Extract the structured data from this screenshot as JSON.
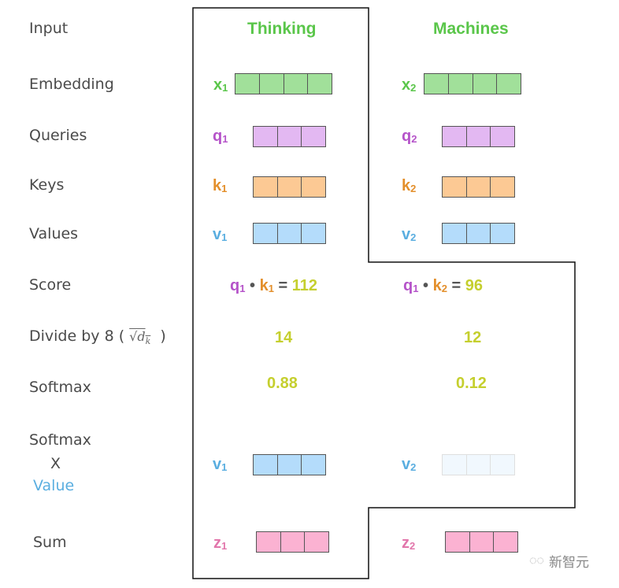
{
  "row_labels": {
    "input": "Input",
    "embedding": "Embedding",
    "queries": "Queries",
    "keys": "Keys",
    "values": "Values",
    "score": "Score",
    "divide": "Divide by 8 (",
    "divide_close": ")",
    "sqrt_dk": "√d",
    "sqrt_sub": "k",
    "softmax": "Softmax",
    "sm_value_1": "Softmax",
    "sm_value_2": "X",
    "sm_value_3": "Value",
    "sum": "Sum"
  },
  "words": [
    "Thinking",
    "Machines"
  ],
  "vars": {
    "x": "x",
    "q": "q",
    "k": "k",
    "v": "v",
    "z": "z",
    "i1": "1",
    "i2": "2"
  },
  "score": {
    "dot": "•",
    "eq": "=",
    "s1": "112",
    "s2": "96"
  },
  "divided": [
    "14",
    "12"
  ],
  "softmax": [
    "0.88",
    "0.12"
  ],
  "watermark": "新智元",
  "colors": {
    "green": "#5ac64a",
    "purple": "#b553c9",
    "orange": "#e38f2b",
    "blue": "#5aaee0",
    "pink": "#e276ab",
    "yellow": "#c5cf2e",
    "embed_fill": "#a1e09a",
    "query_fill": "#e3b8f2",
    "key_fill": "#fcc994",
    "value_fill": "#b4dcfb",
    "sum_fill": "#fbb2d2"
  }
}
